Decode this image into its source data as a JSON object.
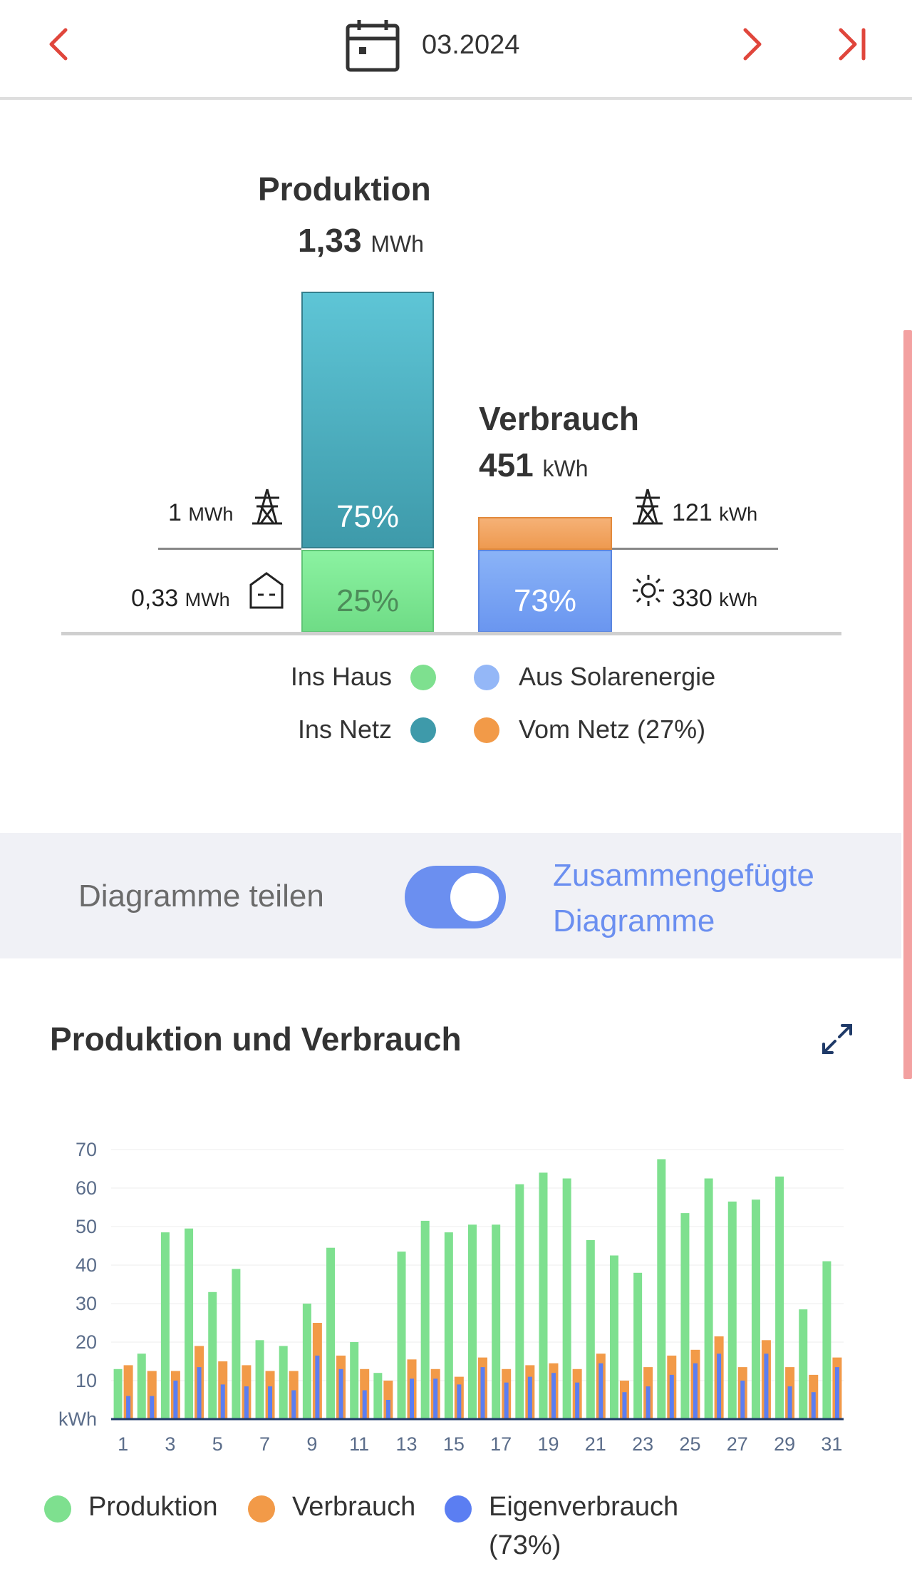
{
  "header": {
    "date": "03.2024",
    "prev_icon": "chevron-left-icon",
    "next_icon": "chevron-right-icon",
    "last_icon": "skip-to-end-icon",
    "calendar_icon": "calendar-icon"
  },
  "summary": {
    "production": {
      "title": "Produktion",
      "value": "1,33",
      "unit": "MWh",
      "grid_pct": "75%",
      "house_pct": "25%",
      "grid_value": "1",
      "grid_unit": "MWh",
      "house_value": "0,33",
      "house_unit": "MWh"
    },
    "consumption": {
      "title": "Verbrauch",
      "value": "451",
      "unit": "kWh",
      "solar_pct": "73%",
      "grid_value": "121",
      "grid_unit": "kWh",
      "solar_value": "330",
      "solar_unit": "kWh"
    },
    "legend": {
      "ins_haus": "Ins Haus",
      "ins_netz": "Ins Netz",
      "aus_solar": "Aus Solarenergie",
      "vom_netz": "Vom Netz (27%)"
    }
  },
  "toggle": {
    "left_label": "Diagramme teilen",
    "right_label_line1": "Zusammengefügte",
    "right_label_line2": "Diagramme",
    "state": "on"
  },
  "chart_section": {
    "title": "Produktion und Verbrauch",
    "expand_icon": "expand-icon"
  },
  "chart_data": {
    "type": "bar",
    "ylabel": "kWh",
    "ylim": [
      0,
      70
    ],
    "yticks": [
      "10",
      "20",
      "30",
      "40",
      "50",
      "60",
      "70"
    ],
    "xticks": [
      "1",
      "3",
      "5",
      "7",
      "9",
      "11",
      "13",
      "15",
      "17",
      "19",
      "21",
      "23",
      "25",
      "27",
      "29",
      "31"
    ],
    "categories": [
      1,
      2,
      3,
      4,
      5,
      6,
      7,
      8,
      9,
      10,
      11,
      12,
      13,
      14,
      15,
      16,
      17,
      18,
      19,
      20,
      21,
      22,
      23,
      24,
      25,
      26,
      27,
      28,
      29,
      30,
      31
    ],
    "series": [
      {
        "name": "Produktion",
        "color": "#7ee08f",
        "values": [
          13,
          17,
          48.5,
          49.5,
          33,
          39,
          20.5,
          19,
          30,
          44.5,
          20,
          12,
          43.5,
          51.5,
          48.5,
          50.5,
          50.5,
          61,
          64,
          62.5,
          46.5,
          42.5,
          38,
          67.5,
          53.5,
          62.5,
          56.5,
          57,
          63,
          28.5,
          41
        ]
      },
      {
        "name": "Verbrauch",
        "color": "#f29a48",
        "values": [
          14,
          12.5,
          12.5,
          19,
          15,
          14,
          12.5,
          12.5,
          25,
          16.5,
          13,
          10,
          15.5,
          13,
          11,
          16,
          13,
          14,
          14.5,
          13,
          17,
          10,
          13.5,
          16.5,
          18,
          21.5,
          13.5,
          20.5,
          13.5,
          11.5,
          16
        ]
      },
      {
        "name": "Eigenverbrauch",
        "color": "#5b7ef2",
        "values": [
          6,
          6,
          10,
          13.5,
          9,
          8.5,
          8.5,
          7.5,
          16.5,
          13,
          7.5,
          5,
          10.5,
          10.5,
          9,
          13.5,
          9.5,
          11,
          12,
          9.5,
          14.5,
          7,
          8.5,
          11.5,
          14.5,
          17,
          10,
          17,
          8.5,
          7,
          13.5
        ]
      }
    ],
    "legend": [
      "Produktion",
      "Verbrauch",
      "Eigenverbrauch"
    ],
    "legend_extra": "(73%)"
  }
}
